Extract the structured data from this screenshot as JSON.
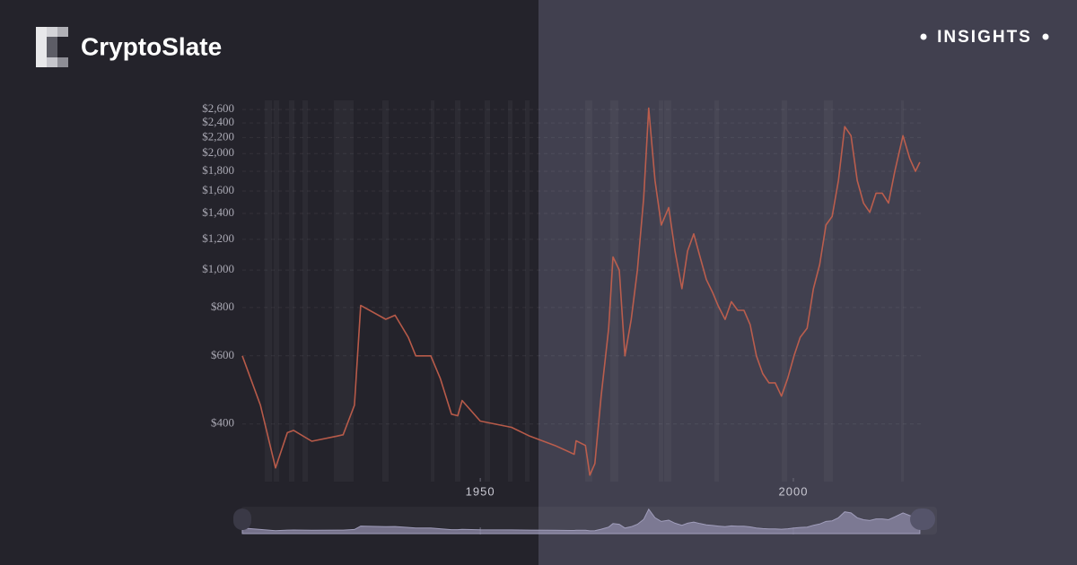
{
  "brand": "CryptoSlate",
  "tag": "INSIGHTS",
  "chart_data": {
    "type": "line",
    "log_scale": true,
    "color": "#c8614c",
    "grid": true,
    "x": [
      1912.0,
      1914.9,
      1917.3,
      1919.2,
      1920.2,
      1923.1,
      1927.1,
      1928.1,
      1929.9,
      1930.9,
      1934.9,
      1936.4,
      1938.5,
      1939.7,
      1942.1,
      1943.6,
      1945.4,
      1946.4,
      1947.1,
      1950.0,
      1955.0,
      1957.9,
      1961.9,
      1965.0,
      1965.3,
      1966.8,
      1967.5,
      1968.3,
      1969.3,
      1970.5,
      1971.2,
      1972.2,
      1973.1,
      1974.1,
      1975.1,
      1976.1,
      1976.9,
      1977.9,
      1978.9,
      1980.1,
      1981.1,
      1982.2,
      1983.1,
      1984.1,
      1985.1,
      1986.1,
      1987.1,
      1988.0,
      1989.1,
      1990.1,
      1991.1,
      1992.1,
      1993.1,
      1994.1,
      1995.1,
      1996.1,
      1997.1,
      1998.1,
      1999.1,
      2000.1,
      2001.1,
      2002.2,
      2003.2,
      2004.2,
      2005.2,
      2006.2,
      2007.2,
      2008.2,
      2009.2,
      2010.2,
      2011.2,
      2012.2,
      2013.2,
      2014.2,
      2015.2,
      2016.2,
      2017.5,
      2018.6,
      2019.5,
      2020.2
    ],
    "values": [
      600,
      447,
      308,
      380,
      385,
      361,
      372,
      375,
      447,
      810,
      746,
      764,
      670,
      600,
      600,
      525,
      424,
      420,
      460,
      407,
      392,
      372,
      352,
      334,
      362,
      352,
      295,
      316,
      472,
      707,
      1081,
      1000,
      600,
      745,
      1000,
      1535,
      2620,
      1705,
      1307,
      1450,
      1120,
      895,
      1120,
      1240,
      1081,
      945,
      875,
      808,
      745,
      828,
      787,
      787,
      723,
      600,
      540,
      511,
      511,
      472,
      525,
      600,
      670,
      707,
      895,
      1033,
      1307,
      1376,
      1705,
      2348,
      2225,
      1705,
      1490,
      1410,
      1580,
      1580,
      1490,
      1800,
      2225,
      1940,
      1800,
      1900
    ],
    "xlim": [
      1912,
      2020.5
    ],
    "xticks": [
      1950,
      2000
    ],
    "ylim": [
      290,
      2700
    ],
    "yticks": [
      {
        "value": 400,
        "label": "$400"
      },
      {
        "value": 600,
        "label": "$600"
      },
      {
        "value": 800,
        "label": "$800"
      },
      {
        "value": 1000,
        "label": "$1,000"
      },
      {
        "value": 1200,
        "label": "$1,200"
      },
      {
        "value": 1400,
        "label": "$1,400"
      },
      {
        "value": 1600,
        "label": "$1,600"
      },
      {
        "value": 1800,
        "label": "$1,800"
      },
      {
        "value": 2000,
        "label": "$2,000"
      },
      {
        "value": 2200,
        "label": "$2,200"
      },
      {
        "value": 2400,
        "label": "$2,400"
      },
      {
        "value": 2600,
        "label": "$2,600"
      }
    ]
  }
}
